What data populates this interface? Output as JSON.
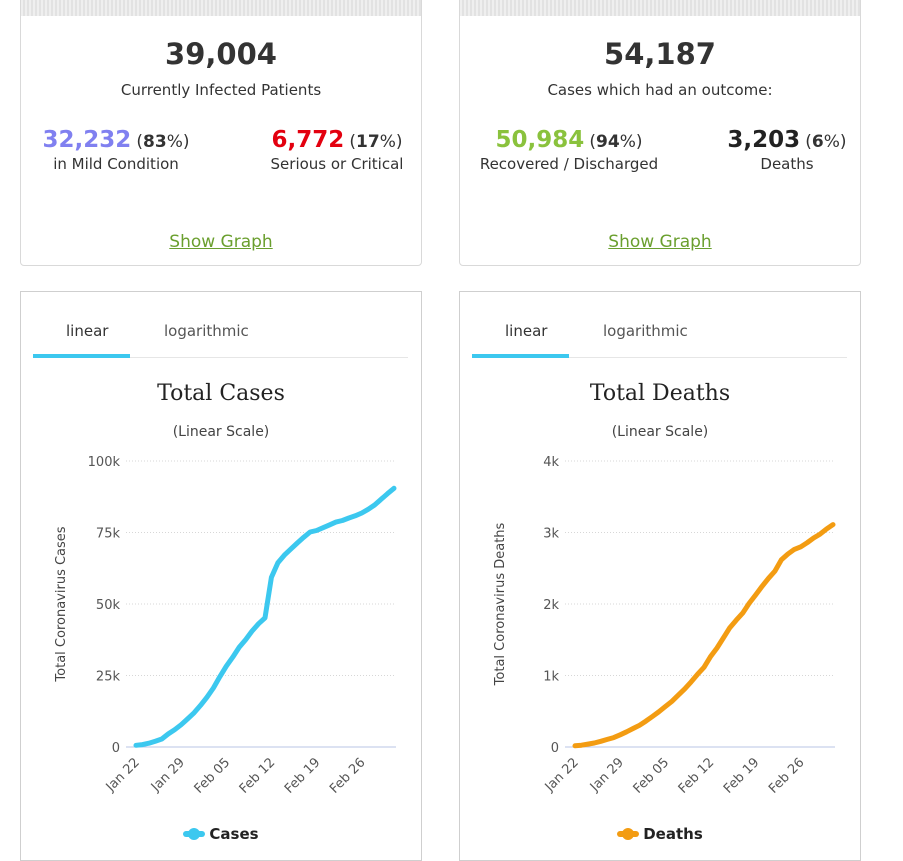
{
  "cards": {
    "active": {
      "total": "39,004",
      "subtitle": "Currently Infected Patients",
      "left_num": "32,232",
      "left_pct_open": "(",
      "left_pct_val": "83",
      "left_pct_close": "%)",
      "left_label": "in Mild Condition",
      "right_num": "6,772",
      "right_pct_open": "(",
      "right_pct_val": "17",
      "right_pct_close": "%)",
      "right_label": "Serious or Critical",
      "link": "Show Graph",
      "left_color": "#8080f0",
      "right_color": "#e3000f"
    },
    "closed": {
      "total": "54,187",
      "subtitle": "Cases which had an outcome:",
      "left_num": "50,984",
      "left_pct_open": "(",
      "left_pct_val": "94",
      "left_pct_close": "%)",
      "left_label": "Recovered / Discharged",
      "right_num": "3,203",
      "right_pct_open": "(",
      "right_pct_val": "6",
      "right_pct_close": "%)",
      "right_label": "Deaths",
      "link": "Show Graph",
      "left_color": "#8ac23d",
      "right_color": "#222222"
    }
  },
  "tabs": {
    "linear": "linear",
    "log": "logarithmic",
    "accent": "#3cc8ef"
  },
  "chart_data": [
    {
      "type": "line",
      "title": "Total Cases",
      "subtitle": "(Linear Scale)",
      "ylabel": "Total Coronavirus Cases",
      "xlabel": "",
      "ylim": [
        0,
        100000
      ],
      "yticks": [
        0,
        25000,
        50000,
        75000,
        100000
      ],
      "ytick_labels": [
        "0",
        "25k",
        "50k",
        "75k",
        "100k"
      ],
      "xtick_labels": [
        "Jan 22",
        "Jan 29",
        "Feb 05",
        "Feb 12",
        "Feb 19",
        "Feb 26"
      ],
      "xtick_index": [
        0,
        7,
        14,
        21,
        28,
        35
      ],
      "x_count": 41,
      "legend": "Cases",
      "color": "#3cc8ef",
      "values": [
        580,
        845,
        1317,
        2015,
        2800,
        4581,
        6058,
        7813,
        9823,
        11950,
        14553,
        17391,
        20630,
        24545,
        28266,
        31439,
        34876,
        37552,
        40553,
        43099,
        45134,
        59287,
        64438,
        67100,
        69197,
        71329,
        73332,
        75184,
        75700,
        76677,
        77673,
        78651,
        79205,
        80087,
        80828,
        81820,
        83112,
        84615,
        86604,
        88585,
        90443
      ]
    },
    {
      "type": "line",
      "title": "Total Deaths",
      "subtitle": "(Linear Scale)",
      "ylabel": "Total Coronavirus Deaths",
      "xlabel": "",
      "ylim": [
        0,
        4000
      ],
      "yticks": [
        0,
        1000,
        2000,
        3000,
        4000
      ],
      "ytick_labels": [
        "0",
        "1k",
        "2k",
        "3k",
        "4k"
      ],
      "xtick_labels": [
        "Jan 22",
        "Jan 29",
        "Feb 05",
        "Feb 12",
        "Feb 19",
        "Feb 26"
      ],
      "xtick_index": [
        0,
        7,
        14,
        21,
        28,
        35
      ],
      "x_count": 41,
      "legend": "Deaths",
      "color": "#f39c12",
      "values": [
        17,
        25,
        41,
        56,
        80,
        106,
        132,
        170,
        213,
        259,
        304,
        362,
        426,
        492,
        565,
        638,
        724,
        813,
        910,
        1018,
        1115,
        1261,
        1383,
        1526,
        1669,
        1775,
        1873,
        2009,
        2126,
        2247,
        2360,
        2460,
        2618,
        2699,
        2763,
        2800,
        2858,
        2923,
        2977,
        3050,
        3110
      ]
    }
  ]
}
